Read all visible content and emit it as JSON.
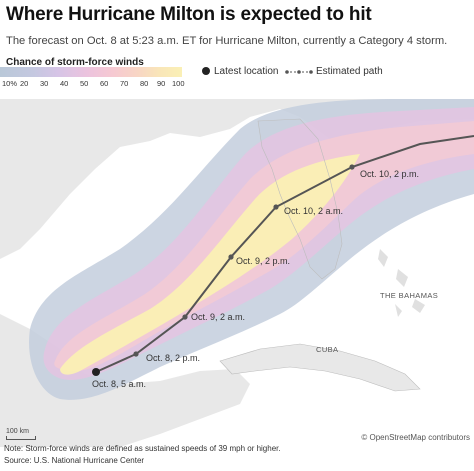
{
  "title": "Where Hurricane Milton is expected to hit",
  "subtitle": "The forecast on Oct. 8 at 5:23 a.m. ET for Hurricane Milton, currently a Category 4 storm.",
  "legend": {
    "title": "Chance of storm-force winds",
    "scale_labels": [
      "10%",
      "20",
      "30",
      "40",
      "50",
      "60",
      "70",
      "80",
      "90",
      "100"
    ],
    "latest_location": "Latest location",
    "estimated_path": "Estimated path"
  },
  "track_points": [
    {
      "label": "Oct. 8, 5 a.m.",
      "latest": true
    },
    {
      "label": "Oct. 8, 2 p.m."
    },
    {
      "label": "Oct. 9, 2 a.m."
    },
    {
      "label": "Oct. 9, 2 p.m."
    },
    {
      "label": "Oct. 10, 2 a.m."
    },
    {
      "label": "Oct. 10, 2 p.m."
    }
  ],
  "places": {
    "bahamas": "THE BAHAMAS",
    "cuba": "CUBA"
  },
  "scalebar": "100 km",
  "attribution": "© OpenStreetMap contributors",
  "note": "Note: Storm-force winds are defined as sustained speeds of 39 mph or higher.",
  "source": "Source: U.S. National Hurricane Center",
  "colors": {
    "track": "#555555",
    "land": "#e8e8e8",
    "water": "#ffffff",
    "prob_low": "#b9c8d8",
    "prob_mid": "#ecc3de",
    "prob_high": "#faf0b6"
  }
}
